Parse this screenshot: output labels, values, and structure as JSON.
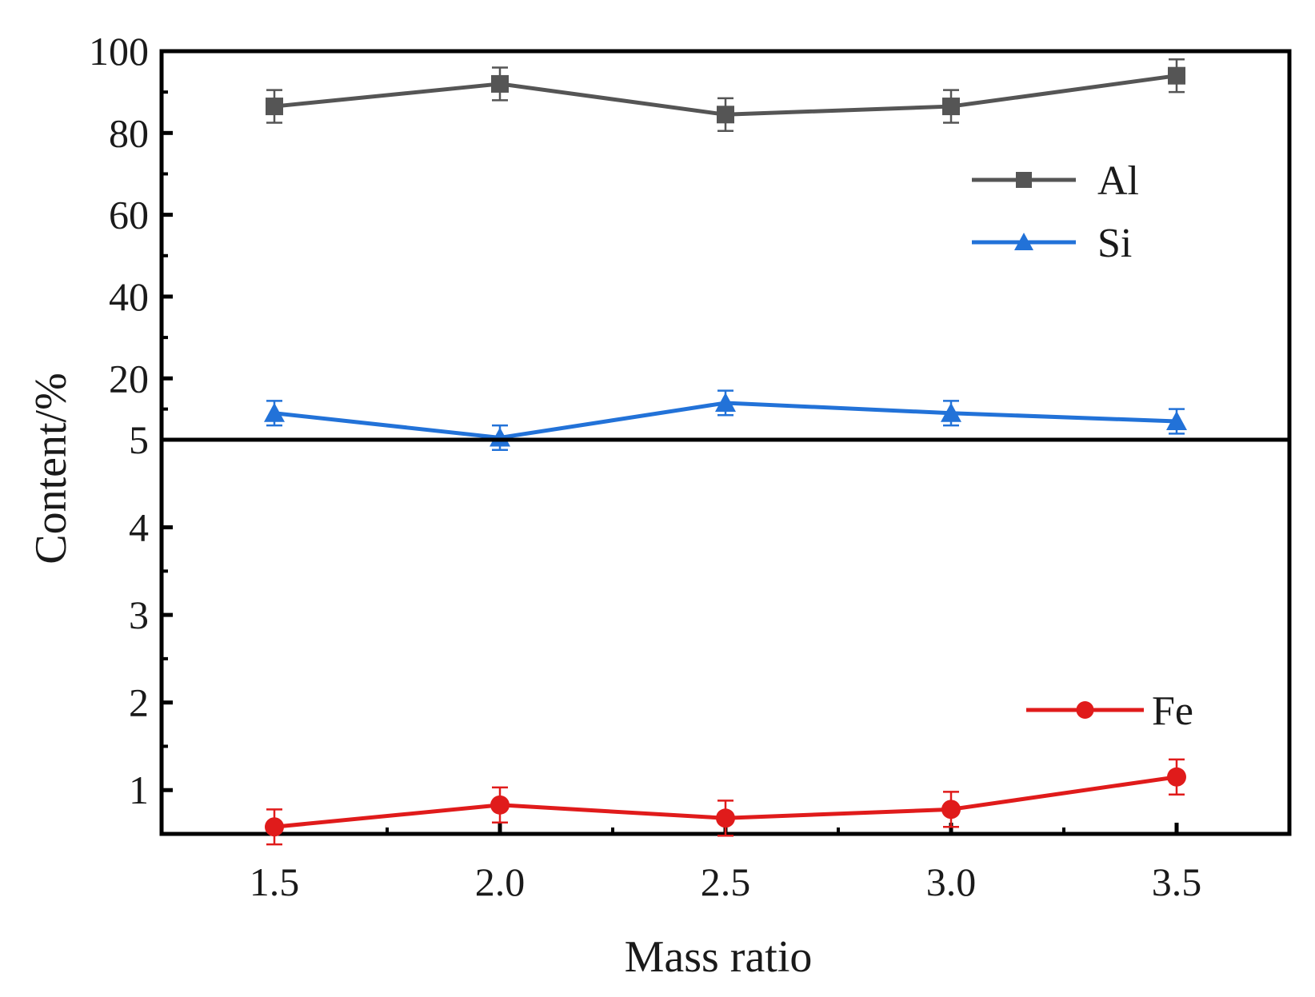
{
  "chart_data": {
    "type": "line",
    "xlabel": "Mass ratio",
    "ylabel": "Content/%",
    "x": [
      1.5,
      2.0,
      2.5,
      3.0,
      3.5
    ],
    "xlim": [
      1.25,
      3.75
    ],
    "xticks": [
      "1.5",
      "2.0",
      "2.5",
      "3.0",
      "3.5"
    ],
    "panels": [
      {
        "name": "upper",
        "ylim": [
          5,
          100
        ],
        "yticks": [
          "100",
          "80",
          "60",
          "40",
          "20",
          "5"
        ],
        "ytick_values": [
          100,
          80,
          60,
          40,
          20,
          5
        ],
        "legend_position": "upper-right",
        "series": [
          {
            "name": "Al",
            "marker": "square",
            "color": "#555555",
            "values": [
              86.5,
              92.0,
              84.5,
              86.5,
              94.0
            ],
            "errors": [
              4.0,
              4.0,
              4.0,
              4.0,
              4.0
            ]
          },
          {
            "name": "Si",
            "marker": "triangle",
            "color": "#2272d8",
            "values": [
              11.5,
              5.5,
              14.0,
              11.5,
              9.5
            ],
            "errors": [
              3.0,
              3.0,
              3.0,
              3.0,
              3.0
            ]
          }
        ]
      },
      {
        "name": "lower",
        "ylim": [
          0.5,
          5
        ],
        "yticks": [
          "4",
          "3",
          "2",
          "1"
        ],
        "ytick_values": [
          4,
          3,
          2,
          1
        ],
        "legend_position": "lower-right",
        "series": [
          {
            "name": "Fe",
            "marker": "circle",
            "color": "#e01b1b",
            "values": [
              0.58,
              0.83,
              0.68,
              0.78,
              1.15
            ],
            "errors": [
              0.2,
              0.2,
              0.2,
              0.2,
              0.2
            ]
          }
        ]
      }
    ]
  }
}
